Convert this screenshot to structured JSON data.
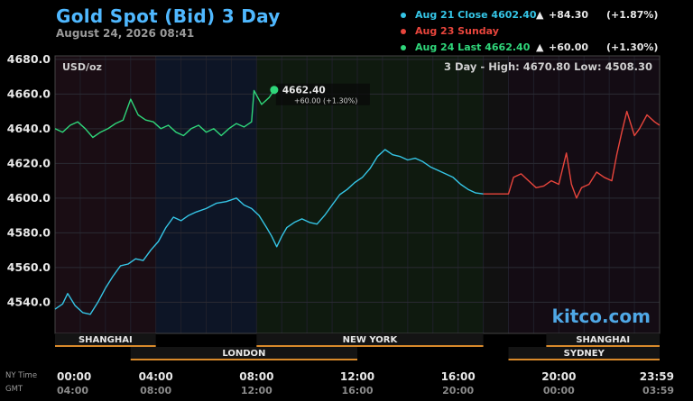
{
  "header": {
    "title": "Gold Spot (Bid) 3 Day",
    "datetime": "August 24, 2026 08:41"
  },
  "legend": [
    {
      "label": "Aug 21 Close 4602.40",
      "arrow": "▲",
      "change": "+84.30",
      "pct": "(+1.87%)",
      "color": "#35c5e6",
      "text_color": "#35c5e6"
    },
    {
      "label": "Aug 23 Sunday",
      "arrow": "",
      "change": "",
      "pct": "",
      "color": "#e8453c",
      "text_color": "#e8453c"
    },
    {
      "label": "Aug 24 Last   4662.40",
      "arrow": "▲",
      "change": "+60.00",
      "pct": "(+1.30%)",
      "color": "#2fd67a",
      "text_color": "#2fd67a"
    }
  ],
  "colors": {
    "aug21": "#35c5e6",
    "aug23": "#e8453c",
    "aug24": "#2fd67a",
    "brand": "#4fb8ff",
    "session_bar": "#d98a2b"
  },
  "chart_data": {
    "type": "line",
    "unit_label": "USD/oz",
    "range_label": "3 Day - High: 4670.80  Low: 4508.30",
    "ylim": [
      4522,
      4682
    ],
    "yticks": [
      4540,
      4560,
      4580,
      4600,
      4620,
      4640,
      4660,
      4680
    ],
    "ytick_labels": [
      "4540.0",
      "4560.0",
      "4580.0",
      "4600.0",
      "4620.0",
      "4640.0",
      "4660.0",
      "4680.0"
    ],
    "xlim": [
      0,
      24
    ],
    "x_ticks_ny": [
      "00:00",
      "04:00",
      "08:00",
      "12:00",
      "16:00",
      "20:00",
      "23:59"
    ],
    "x_ticks_gmt": [
      "04:00",
      "08:00",
      "12:00",
      "16:00",
      "20:00",
      "00:00",
      "03:59"
    ],
    "x_tick_positions": [
      0,
      4,
      8,
      12,
      16,
      20,
      23.98
    ],
    "nytime_label": "NY Time",
    "gmt_label": "GMT",
    "series": [
      {
        "name": "Aug 21",
        "color": "#35c5e6",
        "x": [
          0,
          0.3,
          0.5,
          0.8,
          1.1,
          1.4,
          1.7,
          2.0,
          2.3,
          2.6,
          2.9,
          3.2,
          3.5,
          3.8,
          4.1,
          4.4,
          4.7,
          5.0,
          5.3,
          5.6,
          6.0,
          6.4,
          6.8,
          7.2,
          7.5,
          7.8,
          8.1,
          8.4,
          8.6,
          8.8,
          9.0,
          9.2,
          9.5,
          9.8,
          10.1,
          10.4,
          10.7,
          11.0,
          11.3,
          11.6,
          11.9,
          12.2,
          12.5,
          12.8,
          13.1,
          13.4,
          13.7,
          14.0,
          14.3,
          14.6,
          14.9,
          15.2,
          15.5,
          15.8,
          16.1,
          16.4,
          16.7,
          17.0
        ],
        "values": [
          4536,
          4539,
          4545,
          4538,
          4534,
          4533,
          4540,
          4548,
          4555,
          4561,
          4562,
          4565,
          4564,
          4570,
          4575,
          4583,
          4589,
          4587,
          4590,
          4592,
          4594,
          4597,
          4598,
          4600,
          4596,
          4594,
          4590,
          4583,
          4578,
          4572,
          4578,
          4583,
          4586,
          4588,
          4586,
          4585,
          4590,
          4596,
          4602,
          4605,
          4609,
          4612,
          4617,
          4624,
          4628,
          4625,
          4624,
          4622,
          4623,
          4621,
          4618,
          4616,
          4614,
          4612,
          4608,
          4605,
          4603,
          4602.4
        ]
      },
      {
        "name": "Aug 23",
        "color": "#e8453c",
        "x": [
          17.0,
          18.0,
          18.2,
          18.5,
          18.8,
          19.1,
          19.4,
          19.7,
          20.0,
          20.3,
          20.5,
          20.7,
          20.9,
          21.2,
          21.5,
          21.8,
          22.1,
          22.3,
          22.5,
          22.7,
          23.0,
          23.2,
          23.5,
          23.8,
          24.0
        ],
        "values": [
          4602.4,
          4602.4,
          4612,
          4614,
          4610,
          4606,
          4607,
          4610,
          4608,
          4626,
          4608,
          4600,
          4606,
          4608,
          4615,
          4612,
          4610,
          4625,
          4638,
          4650,
          4636,
          4640,
          4648,
          4644,
          4642
        ]
      },
      {
        "name": "Aug 24",
        "color": "#2fd67a",
        "x": [
          0,
          0.3,
          0.6,
          0.9,
          1.2,
          1.5,
          1.8,
          2.1,
          2.4,
          2.7,
          3.0,
          3.3,
          3.6,
          3.9,
          4.2,
          4.5,
          4.8,
          5.1,
          5.4,
          5.7,
          6.0,
          6.3,
          6.6,
          6.9,
          7.2,
          7.5,
          7.8,
          7.9,
          8.2,
          8.5,
          8.7
        ],
        "values": [
          4640,
          4638,
          4642,
          4644,
          4640,
          4635,
          4638,
          4640,
          4643,
          4645,
          4657,
          4648,
          4645,
          4644,
          4640,
          4642,
          4638,
          4636,
          4640,
          4642,
          4638,
          4640,
          4636,
          4640,
          4643,
          4641,
          4644,
          4662,
          4654,
          4658,
          4662.4
        ]
      }
    ],
    "last_label": "4662.40",
    "last_change": "+60.00 (+1.30%)",
    "sessions_row1": [
      {
        "name": "SHANGHAI",
        "start": 0,
        "end": 4
      },
      {
        "name": "NEW YORK",
        "start": 8,
        "end": 17
      },
      {
        "name": "SHANGHAI",
        "start": 19.5,
        "end": 24
      }
    ],
    "sessions_row2": [
      {
        "name": "LONDON",
        "start": 3,
        "end": 12
      },
      {
        "name": "SYDNEY",
        "start": 18,
        "end": 24
      }
    ],
    "watermark": "kitco.com"
  }
}
